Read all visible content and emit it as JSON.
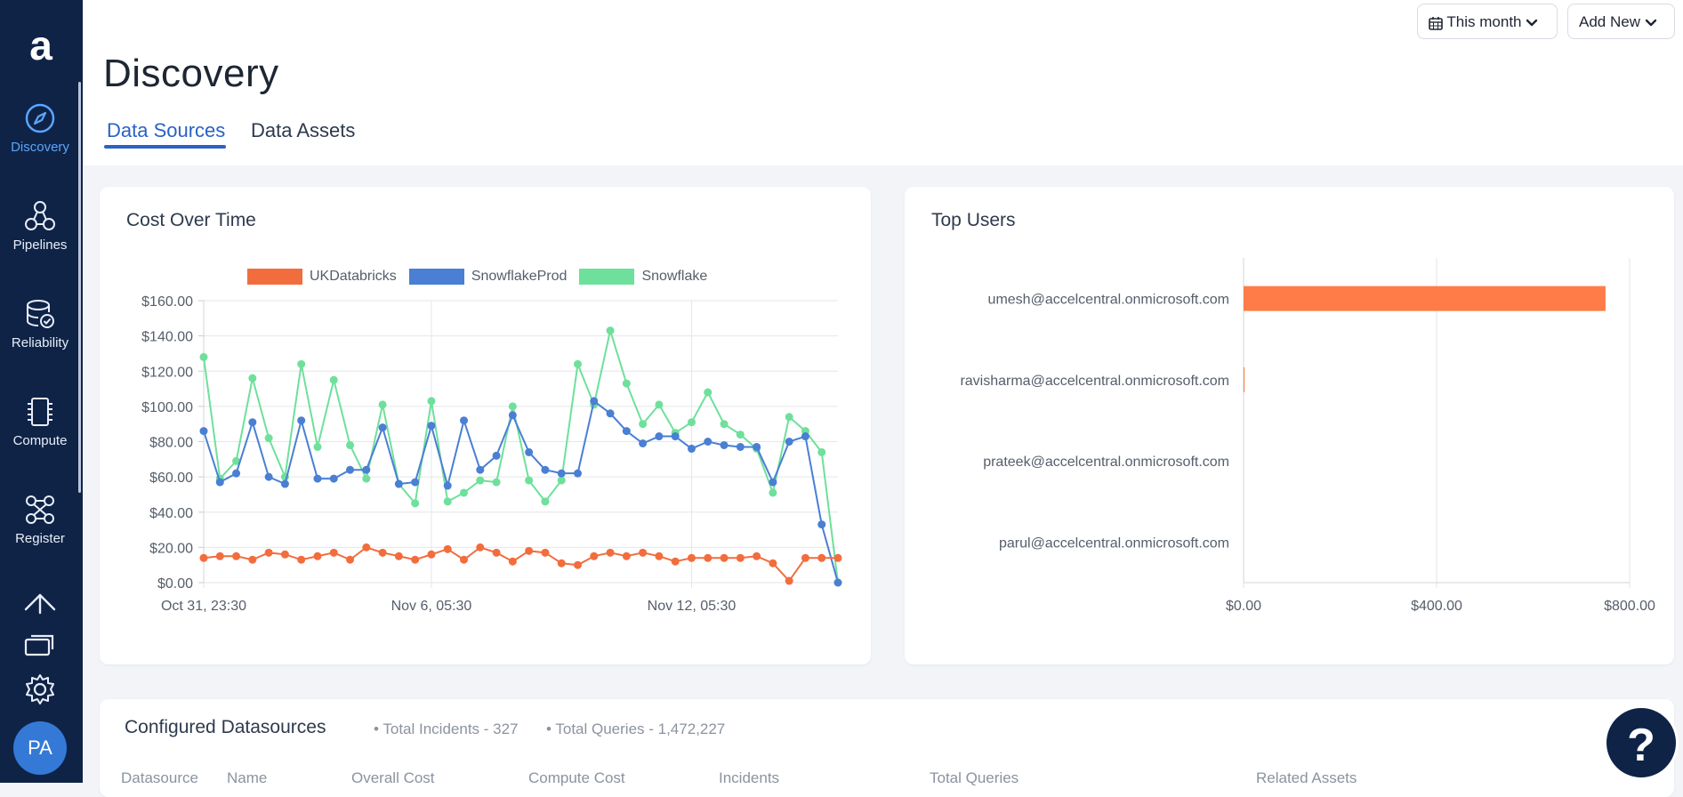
{
  "sidebar": {
    "logo": "a",
    "items": [
      {
        "label": "Discovery",
        "icon": "compass-icon",
        "active": true
      },
      {
        "label": "Pipelines",
        "icon": "nodes-icon"
      },
      {
        "label": "Reliability",
        "icon": "database-check-icon"
      },
      {
        "label": "Compute",
        "icon": "chip-icon"
      },
      {
        "label": "Register",
        "icon": "network-icon"
      }
    ],
    "bottom_icons": [
      "upload-icon",
      "stack-icon",
      "gear-icon"
    ],
    "avatar_initials": "PA"
  },
  "header": {
    "title": "Discovery",
    "tabs": [
      {
        "label": "Data Sources",
        "active": true
      },
      {
        "label": "Data Assets",
        "active": false
      }
    ],
    "date_filter_label": "This month",
    "add_new_label": "Add New"
  },
  "cost_chart": {
    "title": "Cost Over Time",
    "legend": [
      "UKDatabricks",
      "SnowflakeProd",
      "Snowflake"
    ],
    "colors": {
      "UKDatabricks": "#f26d3d",
      "SnowflakeProd": "#4a7fd3",
      "Snowflake": "#6ee09b"
    },
    "y_ticks": [
      "$160.00",
      "$140.00",
      "$120.00",
      "$100.00",
      "$80.00",
      "$60.00",
      "$40.00",
      "$20.00",
      "$0.00"
    ],
    "x_ticks": [
      "Oct 31, 23:30",
      "Nov 6, 05:30",
      "Nov 12, 05:30"
    ]
  },
  "top_users_chart": {
    "title": "Top Users",
    "users": [
      "umesh@accelcentral.onmicrosoft.com",
      "ravisharma@accelcentral.onmicrosoft.com",
      "prateek@accelcentral.onmicrosoft.com",
      "parul@accelcentral.onmicrosoft.com"
    ],
    "x_ticks": [
      "$0.00",
      "$400.00",
      "$800.00"
    ],
    "bar_color": "#ff7b47"
  },
  "chart_data": [
    {
      "type": "line",
      "title": "Cost Over Time",
      "ylim": [
        0,
        160
      ],
      "x_tick_labels": [
        "Oct 31, 23:30",
        "Nov 6, 05:30",
        "Nov 12, 05:30"
      ],
      "legend_position": "top",
      "grid": true,
      "series": [
        {
          "name": "UKDatabricks",
          "values": [
            14,
            15,
            15,
            13,
            17,
            16,
            13,
            15,
            17,
            13,
            20,
            17,
            15,
            13,
            16,
            19,
            13,
            20,
            17,
            12,
            18,
            17,
            11,
            10,
            15,
            17,
            15,
            17,
            15,
            12,
            14,
            14,
            14,
            14,
            15,
            11,
            1,
            14,
            14,
            14
          ]
        },
        {
          "name": "SnowflakeProd",
          "values": [
            86,
            57,
            62,
            91,
            60,
            56,
            92,
            59,
            59,
            64,
            64,
            88,
            56,
            57,
            89,
            55,
            92,
            64,
            72,
            95,
            74,
            64,
            62,
            62,
            103,
            96,
            86,
            79,
            83,
            83,
            76,
            80,
            78,
            77,
            77,
            57,
            80,
            83,
            33,
            0
          ]
        },
        {
          "name": "Snowflake",
          "values": [
            128,
            59,
            69,
            116,
            82,
            60,
            124,
            77,
            115,
            78,
            59,
            101,
            56,
            45,
            103,
            46,
            51,
            58,
            57,
            100,
            58,
            46,
            58,
            124,
            101,
            143,
            113,
            90,
            101,
            85,
            91,
            108,
            90,
            84,
            76,
            51,
            94,
            86,
            74,
            0
          ]
        }
      ]
    },
    {
      "type": "bar",
      "orientation": "horizontal",
      "title": "Top Users",
      "categories": [
        "umesh@accelcentral.onmicrosoft.com",
        "ravisharma@accelcentral.onmicrosoft.com",
        "prateek@accelcentral.onmicrosoft.com",
        "parul@accelcentral.onmicrosoft.com"
      ],
      "values": [
        750,
        2,
        0,
        0
      ],
      "xlim": [
        0,
        800
      ],
      "grid": true
    }
  ],
  "datasources": {
    "title": "Configured Datasources",
    "total_incidents": "• Total Incidents - 327",
    "total_queries": "• Total Queries - 1,472,227",
    "columns": [
      "Datasource",
      "Name",
      "Overall Cost",
      "Compute Cost",
      "Incidents",
      "Total Queries",
      "Related Assets"
    ]
  },
  "help_label": "?"
}
